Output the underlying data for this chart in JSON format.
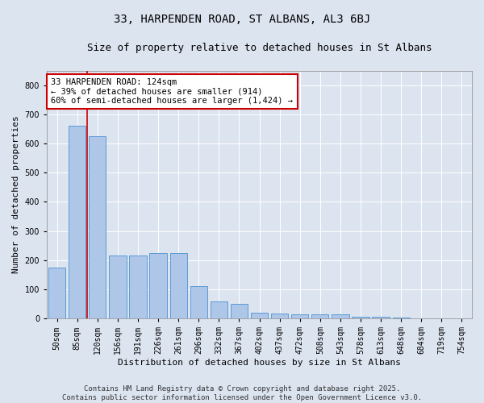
{
  "title": "33, HARPENDEN ROAD, ST ALBANS, AL3 6BJ",
  "subtitle": "Size of property relative to detached houses in St Albans",
  "xlabel": "Distribution of detached houses by size in St Albans",
  "ylabel": "Number of detached properties",
  "categories": [
    "50sqm",
    "85sqm",
    "120sqm",
    "156sqm",
    "191sqm",
    "226sqm",
    "261sqm",
    "296sqm",
    "332sqm",
    "367sqm",
    "402sqm",
    "437sqm",
    "472sqm",
    "508sqm",
    "543sqm",
    "578sqm",
    "613sqm",
    "648sqm",
    "684sqm",
    "719sqm",
    "754sqm"
  ],
  "values": [
    175,
    660,
    625,
    215,
    215,
    225,
    225,
    110,
    58,
    50,
    20,
    18,
    15,
    14,
    13,
    5,
    5,
    3,
    1,
    1,
    1
  ],
  "bar_color": "#aec6e8",
  "bar_edge_color": "#5b9bd5",
  "vline_color": "#cc0000",
  "vline_index": 2,
  "annotation_text": "33 HARPENDEN ROAD: 124sqm\n← 39% of detached houses are smaller (914)\n60% of semi-detached houses are larger (1,424) →",
  "annotation_box_facecolor": "#ffffff",
  "annotation_box_edgecolor": "#cc0000",
  "ylim": [
    0,
    850
  ],
  "yticks": [
    0,
    100,
    200,
    300,
    400,
    500,
    600,
    700,
    800
  ],
  "background_color": "#dce4f0",
  "plot_background": "#dce4f0",
  "grid_color": "#ffffff",
  "footer": "Contains HM Land Registry data © Crown copyright and database right 2025.\nContains public sector information licensed under the Open Government Licence v3.0.",
  "title_fontsize": 10,
  "subtitle_fontsize": 9,
  "axis_label_fontsize": 8,
  "tick_fontsize": 7,
  "annotation_fontsize": 7.5,
  "footer_fontsize": 6.5
}
